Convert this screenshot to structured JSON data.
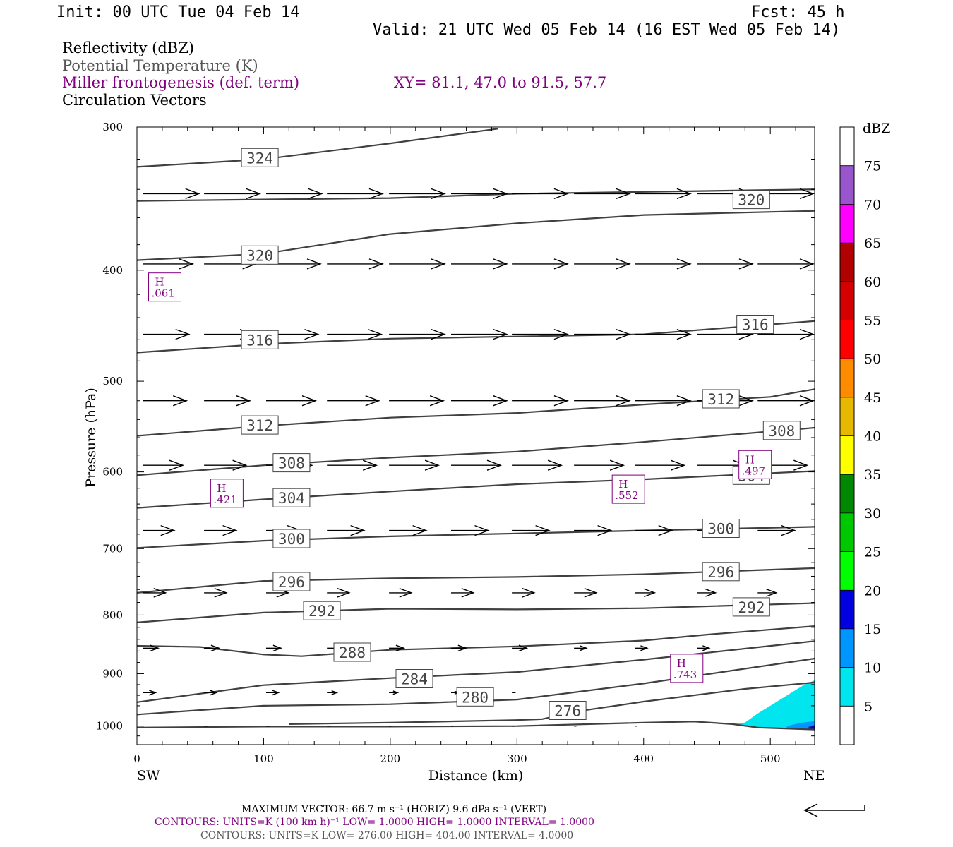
{
  "header": {
    "init": "Init: 00 UTC Tue 04 Feb 14",
    "fcst": "Fcst:   45 h",
    "valid": "Valid: 21 UTC Wed 05 Feb 14 (16 EST Wed 05 Feb 14)"
  },
  "fields": {
    "reflectivity": "Reflectivity (dBZ)",
    "theta": "Potential Temperature (K)",
    "miller": "Miller frontogenesis (def. term)",
    "xy": "XY=  81.1, 47.0 to  91.5, 57.7",
    "vectors": "Circulation Vectors"
  },
  "colors": {
    "contour": "#404040",
    "miller": "#800080",
    "refl_fill_light": "#00e5ee",
    "refl_fill_mid": "#0096ff",
    "refl_fill_dark": "#0000e0"
  },
  "chart_data": {
    "type": "line",
    "xlabel": "Distance (km)",
    "ylabel": "Pressure (hPa)",
    "xlim": [
      0,
      535
    ],
    "ylim": [
      1038,
      300
    ],
    "y_log": true,
    "x_ticks": [
      "0",
      "100",
      "200",
      "300",
      "400",
      "500"
    ],
    "y_ticks": [
      "300",
      "400",
      "500",
      "600",
      "700",
      "800",
      "900",
      "1000"
    ],
    "x_end_labels": {
      "left": "SW",
      "right": "NE"
    },
    "theta_contours": [
      {
        "value": 324,
        "label": "324",
        "label_at": [
          97,
          319
        ],
        "points": [
          [
            0,
            325
          ],
          [
            100,
            320
          ],
          [
            200,
            310
          ],
          [
            285,
            301
          ]
        ]
      },
      {
        "value": 320,
        "label": "320",
        "label_at": [
          485,
          347
        ],
        "points": [
          [
            0,
            348
          ],
          [
            200,
            346
          ],
          [
            300,
            343
          ],
          [
            535,
            340
          ]
        ]
      },
      {
        "value": 320,
        "label": "320",
        "label_at": [
          97,
          388
        ],
        "points": [
          [
            0,
            392
          ],
          [
            100,
            387
          ],
          [
            200,
            372
          ],
          [
            300,
            364
          ],
          [
            400,
            358
          ],
          [
            535,
            355
          ]
        ]
      },
      {
        "value": 316,
        "label": "316",
        "label_at": [
          97,
          460
        ],
        "points": [
          [
            0,
            472
          ],
          [
            100,
            464
          ],
          [
            200,
            459
          ],
          [
            300,
            457
          ],
          [
            400,
            455
          ],
          [
            535,
            443
          ]
        ]
      },
      {
        "value": 316,
        "label": "316",
        "label_at": [
          488,
          446
        ],
        "points": []
      },
      {
        "value": 312,
        "label": "312",
        "label_at": [
          97,
          546
        ],
        "points": [
          [
            0,
            558
          ],
          [
            100,
            547
          ],
          [
            200,
            538
          ],
          [
            300,
            533
          ],
          [
            400,
            524
          ],
          [
            500,
            516
          ],
          [
            535,
            508
          ]
        ]
      },
      {
        "value": 312,
        "label": "312",
        "label_at": [
          461,
          518
        ],
        "points": []
      },
      {
        "value": 308,
        "label": "308",
        "label_at": [
          509,
          552
        ],
        "points": [
          [
            0,
            604
          ],
          [
            100,
            592
          ],
          [
            200,
            583
          ],
          [
            300,
            576
          ],
          [
            400,
            565
          ],
          [
            535,
            549
          ]
        ]
      },
      {
        "value": 308,
        "label": "308",
        "label_at": [
          122,
          589
        ],
        "points": []
      },
      {
        "value": 304,
        "label": "304",
        "label_at": [
          122,
          632
        ],
        "points": [
          [
            0,
            645
          ],
          [
            100,
            634
          ],
          [
            200,
            624
          ],
          [
            300,
            615
          ],
          [
            400,
            609
          ],
          [
            535,
            599
          ]
        ]
      },
      {
        "value": 304,
        "label": "304",
        "label_at": [
          485,
          604
        ],
        "points": []
      },
      {
        "value": 300,
        "label": "300",
        "label_at": [
          122,
          686
        ],
        "points": [
          [
            0,
            699
          ],
          [
            100,
            689
          ],
          [
            200,
            683
          ],
          [
            300,
            679
          ],
          [
            400,
            675
          ],
          [
            535,
            670
          ]
        ]
      },
      {
        "value": 300,
        "label": "300",
        "label_at": [
          461,
          672
        ],
        "points": []
      },
      {
        "value": 296,
        "label": "296",
        "label_at": [
          122,
          748
        ],
        "points": [
          [
            0,
            765
          ],
          [
            100,
            747
          ],
          [
            200,
            743
          ],
          [
            300,
            741
          ],
          [
            400,
            737
          ],
          [
            535,
            728
          ]
        ]
      },
      {
        "value": 296,
        "label": "296",
        "label_at": [
          461,
          733
        ],
        "points": []
      },
      {
        "value": 292,
        "label": "292",
        "label_at": [
          146,
          793
        ],
        "points": [
          [
            0,
            812
          ],
          [
            100,
            796
          ],
          [
            200,
            790
          ],
          [
            300,
            791
          ],
          [
            400,
            789
          ],
          [
            535,
            781
          ]
        ]
      },
      {
        "value": 292,
        "label": "292",
        "label_at": [
          485,
          787
        ],
        "points": []
      },
      {
        "value": 288,
        "label": "288",
        "label_at": [
          170,
          862
        ],
        "points": [
          [
            0,
            851
          ],
          [
            50,
            853
          ],
          [
            100,
            866
          ],
          [
            130,
            869
          ],
          [
            200,
            858
          ],
          [
            300,
            852
          ],
          [
            400,
            842
          ],
          [
            450,
            832
          ],
          [
            535,
            818
          ]
        ]
      },
      {
        "value": 284,
        "label": "284",
        "label_at": [
          219,
          909
        ],
        "points": [
          [
            0,
            953
          ],
          [
            100,
            921
          ],
          [
            200,
            908
          ],
          [
            300,
            897
          ],
          [
            400,
            875
          ],
          [
            535,
            843
          ]
        ]
      },
      {
        "value": 280,
        "label": "280",
        "label_at": [
          267,
          943
        ],
        "points": [
          [
            0,
            977
          ],
          [
            100,
            960
          ],
          [
            200,
            957
          ],
          [
            300,
            948
          ],
          [
            400,
            918
          ],
          [
            535,
            873
          ]
        ]
      },
      {
        "value": 276,
        "label": "276",
        "label_at": [
          340,
          969
        ],
        "points": [
          [
            120,
            996
          ],
          [
            200,
            993
          ],
          [
            300,
            988
          ],
          [
            320,
            986
          ],
          [
            350,
            970
          ],
          [
            400,
            952
          ],
          [
            480,
            928
          ],
          [
            535,
            916
          ]
        ]
      },
      {
        "value": 0,
        "label": "",
        "label_at": null,
        "points": [
          [
            0,
            1003
          ],
          [
            100,
            1001
          ],
          [
            200,
            1001
          ],
          [
            300,
            1000
          ],
          [
            400,
            993
          ],
          [
            440,
            991
          ],
          [
            470,
            996
          ],
          [
            490,
            1003
          ],
          [
            535,
            1007
          ]
        ]
      }
    ],
    "miller_highs": [
      {
        "label": "H",
        "value": ".061",
        "at": [
          22,
          415
        ]
      },
      {
        "label": "H",
        "value": ".421",
        "at": [
          71,
          628
        ]
      },
      {
        "label": "H",
        "value": ".552",
        "at": [
          388,
          623
        ]
      },
      {
        "label": "H",
        "value": ".497",
        "at": [
          488,
          593
        ]
      },
      {
        "label": "H",
        "value": ".743",
        "at": [
          434,
          893
        ]
      }
    ],
    "circulation_vectors": [
      {
        "p": 343,
        "x": [
          5,
          53,
          102,
          150,
          199,
          248,
          296,
          345,
          393,
          442,
          490,
          535
        ],
        "u": [
          45,
          45,
          45,
          45,
          45,
          45,
          45,
          45,
          45,
          45,
          45,
          25
        ]
      },
      {
        "p": 395,
        "x": [
          5,
          53,
          102,
          150,
          199,
          248,
          296,
          345,
          393,
          442,
          490,
          535
        ],
        "u": [
          40,
          42,
          44,
          45,
          45,
          45,
          45,
          45,
          45,
          45,
          45,
          45
        ]
      },
      {
        "p": 455,
        "x": [
          5,
          53,
          102,
          150,
          199,
          248,
          296,
          345,
          393,
          442,
          490
        ],
        "u": [
          37,
          40,
          42,
          44,
          45,
          45,
          45,
          45,
          45,
          45,
          45
        ]
      },
      {
        "p": 520,
        "x": [
          5,
          53,
          102,
          150,
          199,
          248,
          296,
          345,
          393,
          442,
          490
        ],
        "u": [
          35,
          37,
          40,
          42,
          44,
          45,
          45,
          45,
          45,
          45,
          45
        ]
      },
      {
        "p": 592,
        "x": [
          5,
          53,
          102,
          150,
          199,
          248,
          296,
          345,
          393,
          442,
          490
        ],
        "u": [
          32,
          34,
          37,
          40,
          40,
          40,
          40,
          40,
          40,
          40,
          40
        ]
      },
      {
        "p": 675,
        "x": [
          5,
          53,
          102,
          150,
          199,
          248,
          296,
          345,
          393,
          442,
          490
        ],
        "u": [
          25,
          26,
          28,
          30,
          30,
          30,
          30,
          30,
          30,
          30,
          30
        ]
      },
      {
        "p": 765,
        "x": [
          5,
          53,
          102,
          150,
          199,
          248,
          296,
          345,
          393,
          442,
          490
        ],
        "u": [
          18,
          18,
          18,
          18,
          18,
          18,
          18,
          18,
          16,
          15,
          15
        ]
      },
      {
        "p": 855,
        "x": [
          5,
          53,
          102,
          150,
          199,
          248,
          296,
          345,
          393,
          442
        ],
        "u": [
          12,
          12,
          12,
          12,
          12,
          12,
          12,
          10,
          10,
          10
        ]
      },
      {
        "p": 935,
        "x": [
          5,
          53,
          102,
          150,
          199,
          248,
          296
        ],
        "u": [
          10,
          10,
          10,
          8,
          7,
          6,
          3
        ]
      },
      {
        "p": 1000,
        "x": [
          53,
          102,
          150,
          199,
          248,
          296,
          345,
          393
        ],
        "u": [
          3,
          3,
          3,
          2,
          2,
          2,
          2,
          2
        ]
      }
    ],
    "reflectivity_colorbar": {
      "unit": "dBZ",
      "levels": [
        "5",
        "10",
        "15",
        "20",
        "25",
        "30",
        "35",
        "40",
        "45",
        "50",
        "55",
        "60",
        "65",
        "70",
        "75"
      ],
      "colors": [
        "#ffffff",
        "#00e5ee",
        "#0096ff",
        "#0000e0",
        "#00ff00",
        "#00c800",
        "#008800",
        "#ffff00",
        "#e6b800",
        "#ff8c00",
        "#ff0000",
        "#d40000",
        "#b00000",
        "#ff00ff",
        "#9955cc",
        "#ffffff"
      ]
    }
  },
  "footer": {
    "max_vector": "MAXIMUM VECTOR:  66.7 m s⁻¹ (HORIZ)          9.6 dPa s⁻¹ (VERT)",
    "contours_miller": "CONTOURS:  UNITS=K (100 km h)⁻¹  LOW=  1.0000       HIGH=  1.0000       INTERVAL=    1.0000",
    "contours_theta": "CONTOURS:  UNITS=K   LOW=  276.00       HIGH=  404.00       INTERVAL=    4.0000"
  }
}
